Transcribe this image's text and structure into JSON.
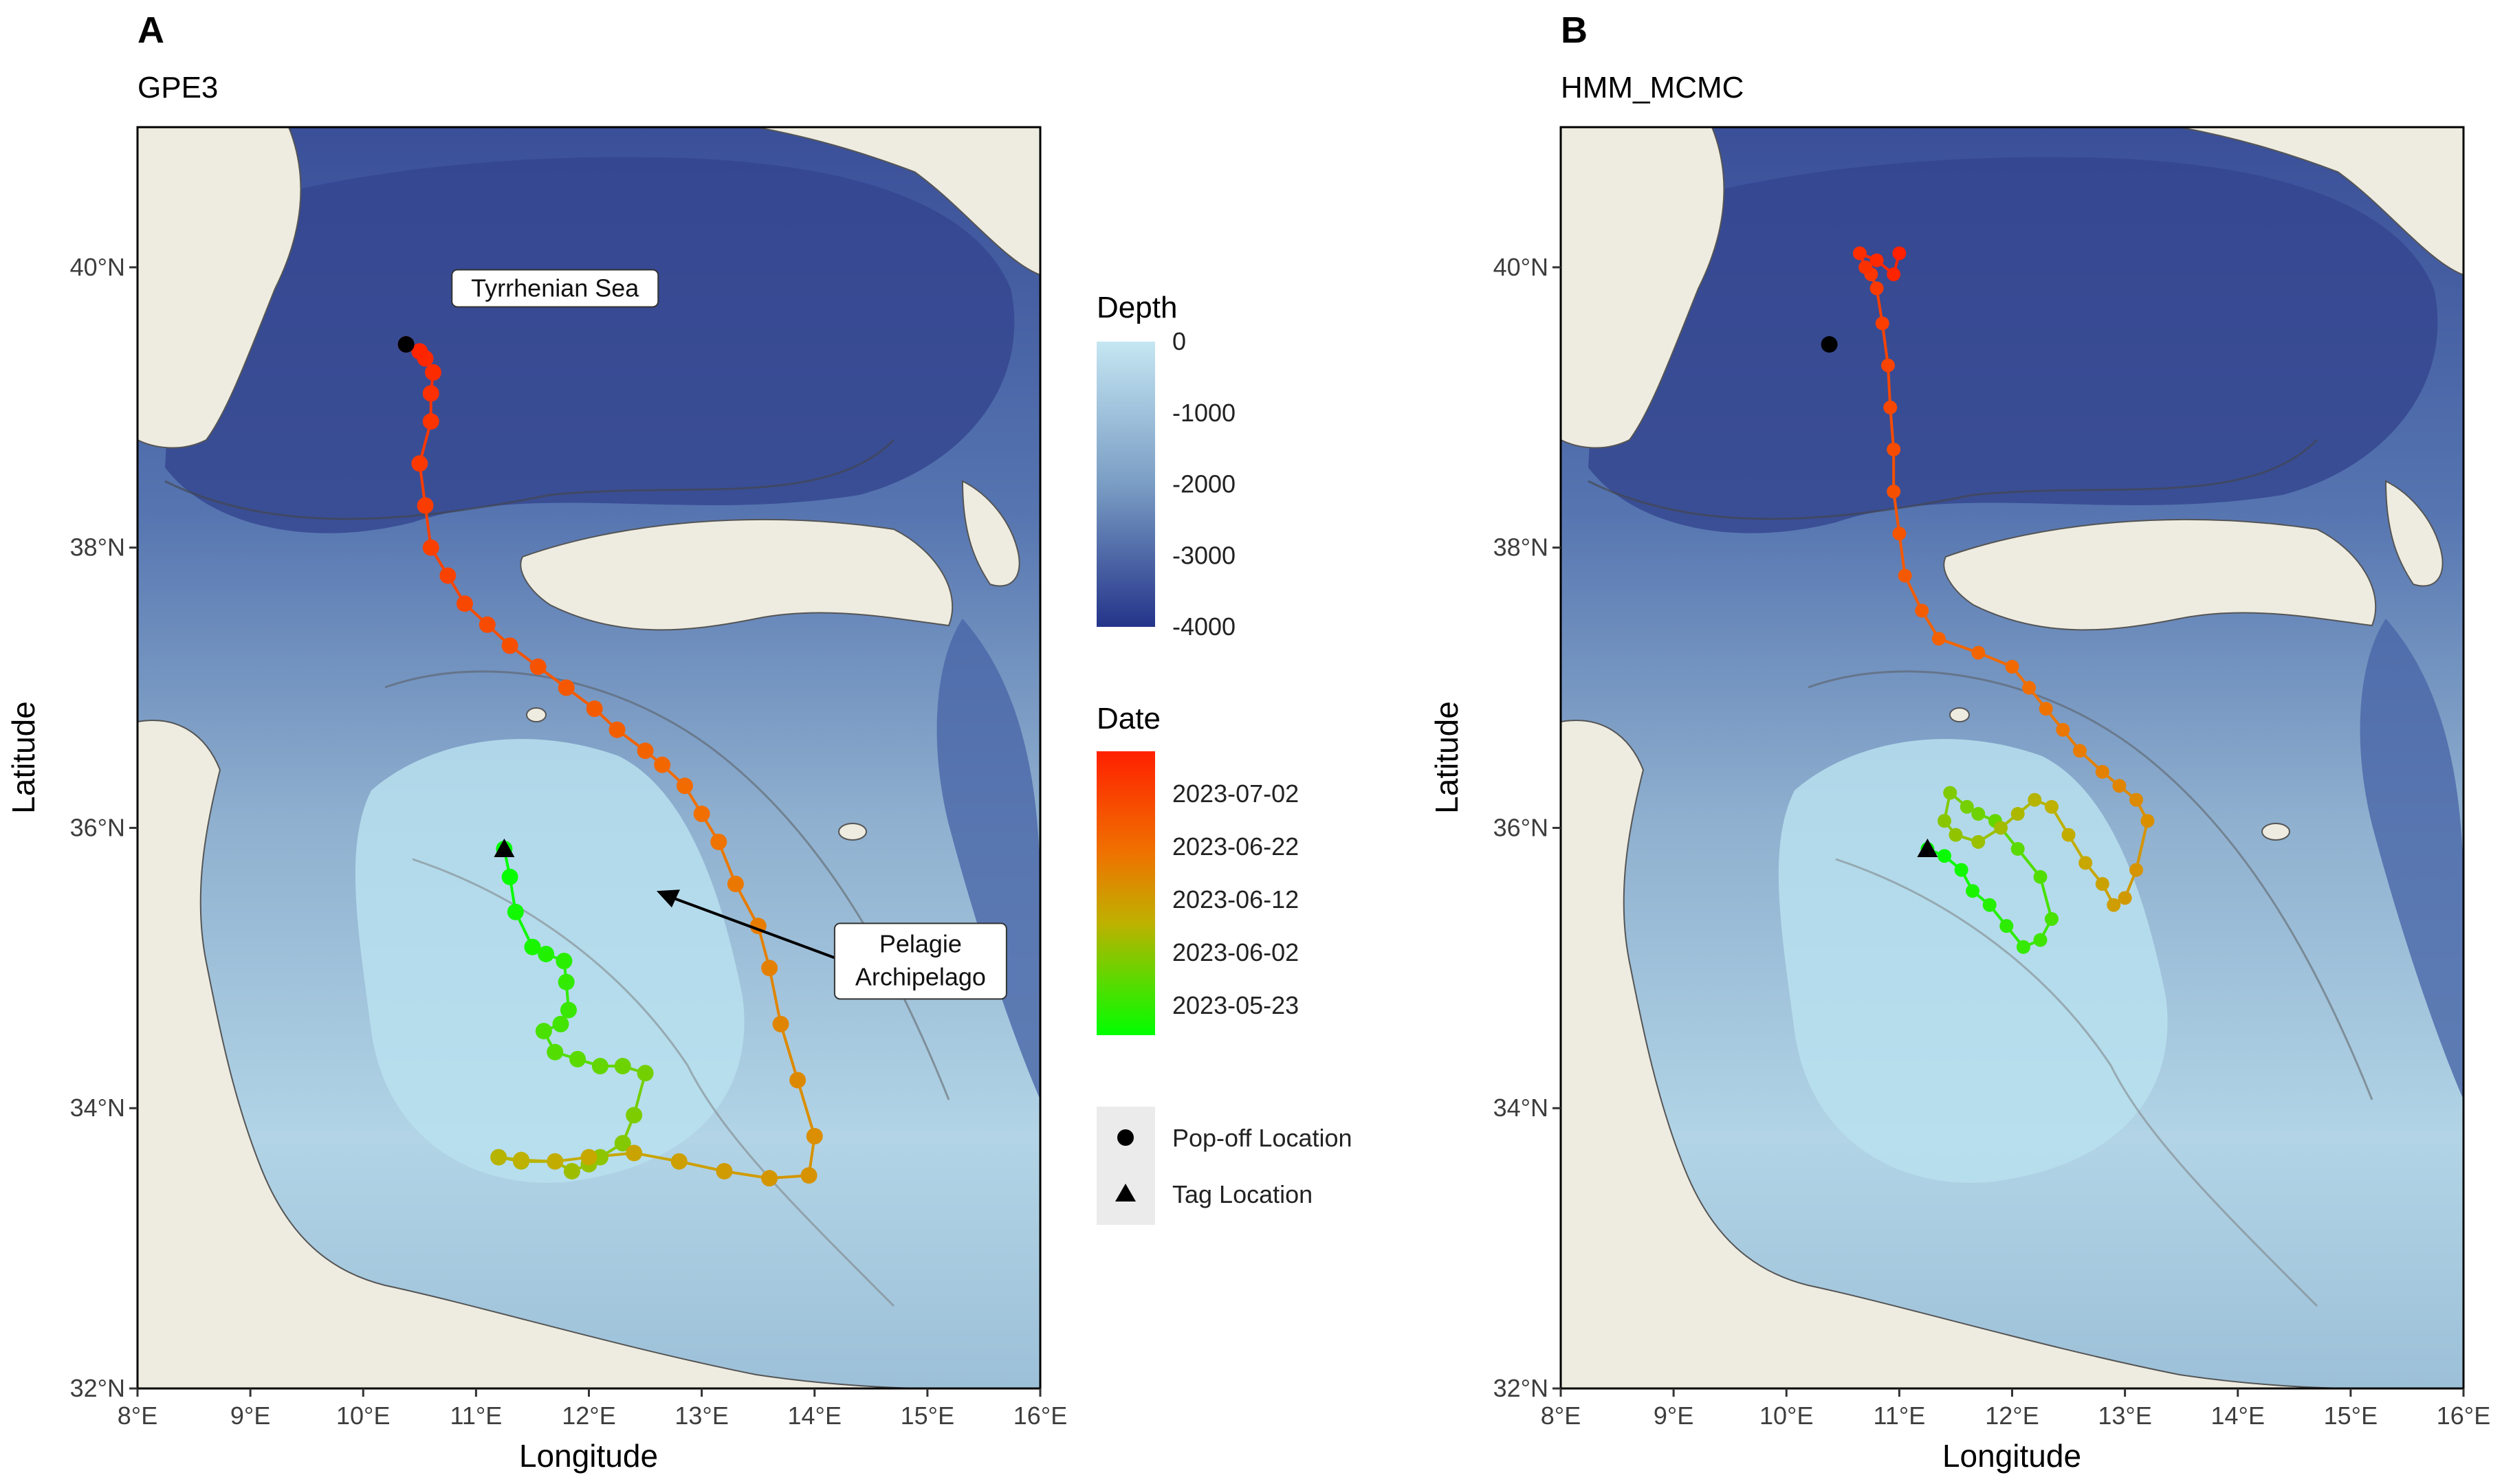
{
  "panels": [
    {
      "letter": "A",
      "method": "GPE3",
      "xlabel": "Longitude",
      "ylabel": "Latitude",
      "annotations": [
        {
          "text": "Tyrrhenian Sea",
          "lon": 11.7,
          "lat": 39.85
        },
        {
          "text_lines": [
            "Pelagie",
            "Archipelago"
          ],
          "lon": 15.0,
          "lat": 35.0,
          "arrow_to": {
            "lon": 12.6,
            "lat": 35.55
          }
        }
      ]
    },
    {
      "letter": "B",
      "method": "HMM_MCMC",
      "xlabel": "Longitude",
      "ylabel": "Latitude",
      "annotations": []
    }
  ],
  "axes": {
    "x_ticks": [
      "8°E",
      "9°E",
      "10°E",
      "11°E",
      "12°E",
      "13°E",
      "14°E",
      "15°E",
      "16°E"
    ],
    "y_ticks": [
      "32°N",
      "34°N",
      "36°N",
      "38°N",
      "40°N"
    ],
    "xlim": [
      8,
      16
    ],
    "ylim": [
      32,
      41
    ]
  },
  "legend": {
    "depth": {
      "title": "Depth",
      "labels": [
        "0",
        "-1000",
        "-2000",
        "-3000",
        "-4000"
      ],
      "range": [
        -4000,
        0
      ],
      "colors": [
        "#c5e6f2",
        "#7a9dc4",
        "#24348a"
      ]
    },
    "date": {
      "title": "Date",
      "labels": [
        "2023-07-02",
        "2023-06-22",
        "2023-06-12",
        "2023-06-02",
        "2023-05-23"
      ],
      "colors": [
        "#ff2000",
        "#e59400",
        "#7fe000",
        "#00ff00"
      ]
    },
    "markers": [
      {
        "icon": "circle-icon",
        "label": "Pop-off Location"
      },
      {
        "icon": "triangle-icon",
        "label": "Tag Location"
      }
    ]
  },
  "markers": {
    "tag_location": {
      "lon": 11.25,
      "lat": 35.85
    },
    "popoff_location": {
      "lon": 10.38,
      "lat": 39.45
    }
  },
  "chart_data": [
    {
      "type": "scatter",
      "title": "GPE3",
      "xlabel": "Longitude",
      "ylabel": "Latitude",
      "xlim": [
        8,
        16
      ],
      "ylim": [
        32,
        41
      ],
      "series": [
        {
          "x": [
            11.25,
            11.3,
            11.35,
            11.5,
            11.62,
            11.78,
            11.8,
            11.82,
            11.75,
            11.6,
            11.7,
            11.9,
            12.1,
            12.3,
            12.5,
            12.4,
            12.3,
            12.1,
            12.0,
            11.85,
            11.7,
            11.4,
            11.2,
            11.4,
            11.7,
            12.0,
            12.4,
            12.8,
            13.2,
            13.6,
            13.95,
            14.0,
            13.85,
            13.7,
            13.6,
            13.5,
            13.3,
            13.15,
            13.0,
            12.85,
            12.65,
            12.5,
            12.25,
            12.05,
            11.8,
            11.55,
            11.3,
            11.1,
            10.9,
            10.75,
            10.6,
            10.55,
            10.5,
            10.6,
            10.6,
            10.62,
            10.55,
            10.5,
            10.38
          ],
          "y": [
            35.85,
            35.65,
            35.4,
            35.15,
            35.1,
            35.05,
            34.9,
            34.7,
            34.6,
            34.55,
            34.4,
            34.35,
            34.3,
            34.3,
            34.25,
            33.95,
            33.75,
            33.65,
            33.6,
            33.55,
            33.62,
            33.62,
            33.65,
            33.63,
            33.62,
            33.65,
            33.68,
            33.62,
            33.55,
            33.5,
            33.52,
            33.8,
            34.2,
            34.6,
            35.0,
            35.3,
            35.6,
            35.9,
            36.1,
            36.3,
            36.45,
            36.55,
            36.7,
            36.85,
            37.0,
            37.15,
            37.3,
            37.45,
            37.6,
            37.8,
            38.0,
            38.3,
            38.6,
            38.9,
            39.1,
            39.25,
            39.35,
            39.4,
            39.45
          ],
          "color_by": "date"
        }
      ]
    },
    {
      "type": "scatter",
      "title": "HMM_MCMC",
      "xlabel": "Longitude",
      "ylabel": "Latitude",
      "xlim": [
        8,
        16
      ],
      "ylim": [
        32,
        41
      ],
      "series": [
        {
          "x": [
            11.25,
            11.4,
            11.55,
            11.65,
            11.8,
            11.95,
            12.1,
            12.25,
            12.35,
            12.25,
            12.05,
            11.85,
            11.7,
            11.6,
            11.45,
            11.4,
            11.5,
            11.7,
            11.9,
            12.05,
            12.2,
            12.35,
            12.5,
            12.65,
            12.8,
            12.9,
            13.0,
            13.1,
            13.2,
            13.1,
            12.95,
            12.8,
            12.6,
            12.45,
            12.3,
            12.15,
            12.0,
            11.7,
            11.35,
            11.2,
            11.05,
            11.0,
            10.95,
            10.95,
            10.92,
            10.9,
            10.85,
            10.8,
            10.75,
            10.7,
            10.65,
            10.8,
            10.95,
            11.0
          ],
          "y": [
            35.85,
            35.8,
            35.7,
            35.55,
            35.45,
            35.3,
            35.15,
            35.2,
            35.35,
            35.65,
            35.85,
            36.05,
            36.1,
            36.15,
            36.25,
            36.05,
            35.95,
            35.9,
            36.0,
            36.1,
            36.2,
            36.15,
            35.95,
            35.75,
            35.6,
            35.45,
            35.5,
            35.7,
            36.05,
            36.2,
            36.3,
            36.4,
            36.55,
            36.7,
            36.85,
            37.0,
            37.15,
            37.25,
            37.35,
            37.55,
            37.8,
            38.1,
            38.4,
            38.7,
            39.0,
            39.3,
            39.6,
            39.85,
            39.95,
            40.0,
            40.1,
            40.05,
            39.95,
            40.1
          ],
          "color_by": "date"
        }
      ]
    }
  ]
}
